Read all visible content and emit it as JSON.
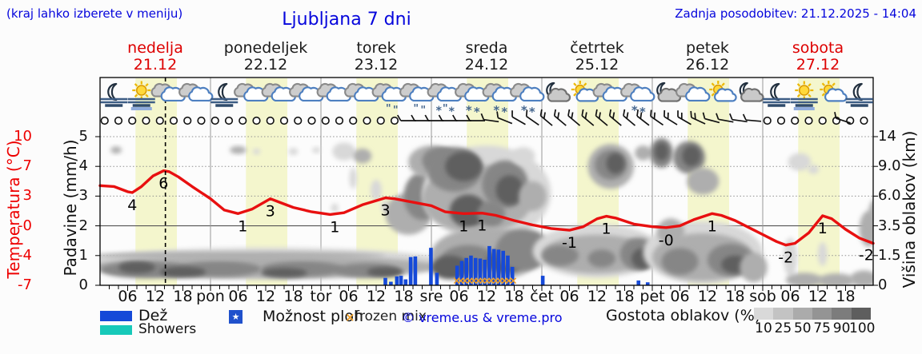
{
  "header": {
    "hint": "(kraj lahko izberete v meniju)",
    "title": "Ljubljana 7 dni",
    "updated": "Zadnja posodobitev: 21.12.2025 - 14:04"
  },
  "days": [
    {
      "name": "nedelja",
      "date": "21.12",
      "highlight": true
    },
    {
      "name": "ponedeljek",
      "date": "22.12",
      "highlight": false
    },
    {
      "name": "torek",
      "date": "23.12",
      "highlight": false
    },
    {
      "name": "sreda",
      "date": "24.12",
      "highlight": false
    },
    {
      "name": "četrtek",
      "date": "25.12",
      "highlight": false
    },
    {
      "name": "petek",
      "date": "26.12",
      "highlight": false
    },
    {
      "name": "sobota",
      "date": "27.12",
      "highlight": true
    }
  ],
  "axes": {
    "temp": {
      "title": "Temperatura (°C)",
      "ticks": [
        "10",
        "7",
        "3",
        "-0",
        "-4",
        "-7"
      ]
    },
    "precip": {
      "title": "Padavine (mm/h)",
      "ticks": [
        "5",
        "4",
        "3",
        "2",
        "1",
        "0"
      ]
    },
    "height": {
      "title": "Višina oblakov (km)",
      "ticks": [
        "14",
        "9.0",
        "6.0",
        "3.5",
        "1.5",
        "0"
      ]
    }
  },
  "legend": {
    "rain": "Dež",
    "showers": "Showers",
    "star": "Možnost ploh",
    "frozen": "frozen mix",
    "copyright": "© vreme.us & vreme.pro",
    "clouds": "Gostota oblakov (%)",
    "cloud_levels": [
      "10",
      "25",
      "50",
      "75",
      "90",
      "100"
    ]
  },
  "colors": {
    "blue_text": "#0505dc",
    "red": "#ee0000",
    "temp_line": "#e81010",
    "rain": "#1549d8",
    "showers": "#17c9b9",
    "star_box": "#2051cc",
    "orange": "#ef9f28",
    "daylight_band": "#f4f6cd",
    "cloud_shades": [
      "#d8d8d8",
      "#aeaeae",
      "#868686",
      "#5e5e5e"
    ],
    "legend_grays": [
      "#d9d9d9",
      "#c3c3c3",
      "#ababab",
      "#949494",
      "#7c7c7c",
      "#5e5e5e"
    ]
  },
  "chart_data": {
    "type": "meteogram",
    "x_unit": "hours from 21.12 00:00, 7 days",
    "x_range": [
      0,
      168
    ],
    "current_time_h": 14.2,
    "daylight": {
      "sunrise_h": 7.7,
      "sunset_h": 16.7
    },
    "precip_axis": {
      "unit": "mm/h",
      "ticks": [
        0,
        1,
        2,
        3,
        4,
        5
      ]
    },
    "temp_axis": {
      "unit": "°C",
      "min": -7,
      "max": 10
    },
    "height_axis": {
      "unit": "km",
      "tick_km": [
        0,
        1.5,
        3.5,
        6.0,
        9.0,
        14
      ]
    },
    "time_labels": [
      [
        6,
        "06"
      ],
      [
        12,
        "12"
      ],
      [
        18,
        "18"
      ],
      [
        24,
        "pon"
      ],
      [
        30,
        "06"
      ],
      [
        36,
        "12"
      ],
      [
        42,
        "18"
      ],
      [
        48,
        "tor"
      ],
      [
        54,
        "06"
      ],
      [
        60,
        "12"
      ],
      [
        66,
        "18"
      ],
      [
        72,
        "sre"
      ],
      [
        78,
        "06"
      ],
      [
        84,
        "12"
      ],
      [
        90,
        "18"
      ],
      [
        96,
        "čet"
      ],
      [
        102,
        "06"
      ],
      [
        108,
        "12"
      ],
      [
        114,
        "18"
      ],
      [
        120,
        "pet"
      ],
      [
        126,
        "06"
      ],
      [
        132,
        "12"
      ],
      [
        138,
        "18"
      ],
      [
        144,
        "sob"
      ],
      [
        150,
        "06"
      ],
      [
        156,
        "12"
      ],
      [
        162,
        "18"
      ]
    ],
    "temperature": [
      [
        0,
        4.4
      ],
      [
        3,
        4.3
      ],
      [
        6,
        3.7
      ],
      [
        7,
        3.6
      ],
      [
        9,
        4.3
      ],
      [
        11.5,
        5.5
      ],
      [
        13.8,
        6.1
      ],
      [
        15,
        6.0
      ],
      [
        17,
        5.4
      ],
      [
        20,
        4.3
      ],
      [
        24,
        2.9
      ],
      [
        27,
        1.6
      ],
      [
        30,
        1.2
      ],
      [
        33,
        1.7
      ],
      [
        37,
        2.9
      ],
      [
        39,
        2.5
      ],
      [
        42,
        1.9
      ],
      [
        46,
        1.4
      ],
      [
        50,
        1.1
      ],
      [
        53,
        1.3
      ],
      [
        57,
        2.2
      ],
      [
        62,
        3.0
      ],
      [
        64,
        2.9
      ],
      [
        68,
        2.5
      ],
      [
        72,
        2.1
      ],
      [
        75,
        1.4
      ],
      [
        79,
        1.2
      ],
      [
        83,
        1.25
      ],
      [
        86,
        1.0
      ],
      [
        90,
        0.4
      ],
      [
        94,
        -0.1
      ],
      [
        98,
        -0.5
      ],
      [
        102,
        -0.7
      ],
      [
        105,
        -0.3
      ],
      [
        108,
        0.6
      ],
      [
        110,
        0.9
      ],
      [
        112,
        0.7
      ],
      [
        116,
        0.0
      ],
      [
        120,
        -0.3
      ],
      [
        123,
        -0.4
      ],
      [
        126,
        -0.2
      ],
      [
        129,
        0.5
      ],
      [
        133,
        1.2
      ],
      [
        135,
        1.0
      ],
      [
        138,
        0.4
      ],
      [
        141,
        -0.4
      ],
      [
        144,
        -1.2
      ],
      [
        147,
        -2.0
      ],
      [
        149,
        -2.4
      ],
      [
        151,
        -2.2
      ],
      [
        154,
        -1.0
      ],
      [
        157,
        0.95
      ],
      [
        159,
        0.6
      ],
      [
        162,
        -0.6
      ],
      [
        165,
        -1.6
      ],
      [
        168,
        -2.2
      ]
    ],
    "temp_point_labels": [
      [
        7,
        3.6,
        "4"
      ],
      [
        13.8,
        6.1,
        "6"
      ],
      [
        31,
        1.2,
        "1"
      ],
      [
        37,
        2.9,
        "3"
      ],
      [
        51,
        1.1,
        "1"
      ],
      [
        62,
        3.0,
        "3"
      ],
      [
        79,
        1.2,
        "1"
      ],
      [
        83,
        1.25,
        "1"
      ],
      [
        102,
        -0.7,
        "-1"
      ],
      [
        110,
        0.9,
        "1"
      ],
      [
        123,
        -0.4,
        "-0"
      ],
      [
        133,
        1.2,
        "1"
      ],
      [
        149,
        -2.4,
        "-2"
      ],
      [
        157,
        0.95,
        "1"
      ],
      [
        166.5,
        -2.1,
        "-2"
      ]
    ],
    "precip_bars": [
      [
        62,
        0.25
      ],
      [
        63.2,
        0.12
      ],
      [
        64.5,
        0.3
      ],
      [
        65.4,
        0.32
      ],
      [
        66.4,
        0.2
      ],
      [
        67.5,
        0.95
      ],
      [
        68.5,
        0.97
      ],
      [
        71.9,
        1.26
      ],
      [
        73.2,
        0.42
      ],
      [
        77.6,
        0.66
      ],
      [
        78.6,
        0.82
      ],
      [
        79.6,
        0.92
      ],
      [
        80.6,
        1.0
      ],
      [
        81.6,
        0.92
      ],
      [
        82.6,
        0.9
      ],
      [
        83.6,
        0.86
      ],
      [
        84.6,
        1.32
      ],
      [
        85.6,
        1.22
      ],
      [
        86.6,
        1.2
      ],
      [
        87.6,
        1.16
      ],
      [
        88.6,
        1.0
      ],
      [
        89.6,
        0.62
      ],
      [
        96.2,
        0.32
      ],
      [
        117,
        0.16
      ],
      [
        119,
        0.1
      ]
    ],
    "frozen_mix_hours": [
      77.5,
      78.4,
      79.3,
      80.3,
      81.2,
      82.2,
      83.1,
      84.1,
      85,
      86,
      86.9,
      87.9,
      88.8,
      89.8
    ],
    "wind": {
      "calm_circle_hours": [
        1,
        4,
        7,
        10,
        13,
        16,
        19,
        22,
        25,
        28,
        31,
        34,
        37,
        40,
        43,
        46,
        49,
        52,
        55,
        58,
        61,
        64,
        145,
        148,
        151,
        154,
        157,
        160,
        163,
        166
      ],
      "barbs": [
        [
          67,
          0,
          1
        ],
        [
          70,
          0,
          1
        ],
        [
          73,
          0,
          1
        ],
        [
          76,
          0,
          1
        ],
        [
          79,
          0,
          1
        ],
        [
          82,
          0,
          1
        ],
        [
          85,
          8,
          1
        ],
        [
          88,
          22,
          1
        ],
        [
          91,
          30,
          1
        ],
        [
          94,
          35,
          1
        ],
        [
          97,
          40,
          2
        ],
        [
          100,
          40,
          2
        ],
        [
          103,
          40,
          2
        ],
        [
          106,
          40,
          2
        ],
        [
          109,
          40,
          2
        ],
        [
          112,
          40,
          2
        ],
        [
          115,
          40,
          2
        ],
        [
          118,
          38,
          2
        ],
        [
          121,
          35,
          2
        ],
        [
          124,
          32,
          2
        ],
        [
          127,
          30,
          2
        ],
        [
          130,
          25,
          2
        ],
        [
          133,
          15,
          1
        ],
        [
          136,
          10,
          1
        ],
        [
          139,
          8,
          1
        ],
        [
          142,
          5,
          1
        ],
        [
          161.5,
          18,
          1
        ]
      ]
    },
    "sky_icons": [
      [
        3,
        "moon-fog"
      ],
      [
        9,
        "sun-fog"
      ],
      [
        15,
        "cloud"
      ],
      [
        21,
        "cloud"
      ],
      [
        27,
        "moon-fog"
      ],
      [
        33,
        "cloud"
      ],
      [
        39,
        "cloud"
      ],
      [
        45,
        "cloud"
      ],
      [
        51,
        "cloud"
      ],
      [
        57,
        "cloud"
      ],
      [
        63,
        "cloud-drizzle"
      ],
      [
        69,
        "cloud-drizzle"
      ],
      [
        75,
        "cloud-sleet"
      ],
      [
        81,
        "cloud-snow"
      ],
      [
        87,
        "cloud-snow"
      ],
      [
        93,
        "cloud-snow"
      ],
      [
        99,
        "moon-cloud"
      ],
      [
        105,
        "sun-cloud"
      ],
      [
        111,
        "cloud"
      ],
      [
        117,
        "cloud-snow"
      ],
      [
        123,
        "moon-cloud"
      ],
      [
        129,
        "cloud"
      ],
      [
        135,
        "sun-cloud"
      ],
      [
        141,
        "moon-cloud"
      ],
      [
        147,
        "moon-fog"
      ],
      [
        153,
        "sun-fog"
      ],
      [
        159,
        "sun-cloud"
      ],
      [
        165,
        "moon-fog"
      ]
    ],
    "clouds": [
      [
        36,
        0.75,
        40,
        0.52,
        0
      ],
      [
        36,
        0.62,
        38,
        0.38,
        1
      ],
      [
        10,
        0.52,
        10,
        0.28,
        2
      ],
      [
        26,
        0.55,
        9,
        0.26,
        2
      ],
      [
        44,
        0.55,
        9,
        0.26,
        2
      ],
      [
        58,
        0.5,
        7,
        0.24,
        2
      ],
      [
        18,
        0.45,
        5,
        0.18,
        3
      ],
      [
        40,
        0.42,
        5,
        0.16,
        3
      ],
      [
        62,
        0.45,
        4,
        0.16,
        3
      ],
      [
        8,
        0.6,
        4,
        0.2,
        3
      ],
      [
        30,
        1.0,
        32,
        0.12,
        1
      ],
      [
        3.5,
        4.55,
        1.2,
        0.12,
        1
      ],
      [
        30,
        4.55,
        1.8,
        0.13,
        1
      ],
      [
        34,
        4.5,
        0.8,
        0.1,
        0
      ],
      [
        42,
        4.5,
        1,
        0.12,
        0
      ],
      [
        47,
        4.55,
        0.9,
        0.1,
        0
      ],
      [
        53,
        4.5,
        2.5,
        0.3,
        0
      ],
      [
        57,
        4.35,
        2,
        0.25,
        1
      ],
      [
        60,
        3.2,
        1.2,
        0.35,
        0
      ],
      [
        62,
        2.65,
        0.9,
        0.2,
        0
      ],
      [
        51,
        2.6,
        0.8,
        0.15,
        0
      ],
      [
        55,
        3.6,
        0.8,
        0.35,
        0
      ],
      [
        67,
        2.4,
        5,
        0.7,
        1
      ],
      [
        70,
        3.0,
        4,
        0.8,
        2
      ],
      [
        72,
        4.15,
        5,
        0.55,
        1
      ],
      [
        74,
        4.2,
        4,
        0.45,
        2
      ],
      [
        84,
        3.1,
        14,
        1.6,
        0
      ],
      [
        82,
        2.9,
        12,
        1.15,
        1
      ],
      [
        77,
        3.9,
        6,
        0.75,
        2
      ],
      [
        79,
        4.0,
        4,
        0.5,
        3
      ],
      [
        88,
        3.4,
        5,
        0.8,
        2
      ],
      [
        89,
        3.2,
        3,
        0.5,
        3
      ],
      [
        80,
        2.5,
        4,
        0.55,
        3
      ],
      [
        85,
        2.4,
        3,
        0.45,
        2
      ],
      [
        92,
        4.35,
        2.5,
        0.3,
        0
      ],
      [
        94,
        3.0,
        3,
        0.5,
        1
      ],
      [
        84,
        1.05,
        12,
        0.9,
        1
      ],
      [
        80,
        0.85,
        6,
        0.5,
        2
      ],
      [
        88,
        0.8,
        4,
        0.4,
        3
      ],
      [
        76,
        0.6,
        4,
        0.4,
        3
      ],
      [
        92,
        1.2,
        6,
        0.7,
        2
      ],
      [
        108,
        1.15,
        14,
        0.9,
        0
      ],
      [
        108,
        1.05,
        12,
        0.65,
        1
      ],
      [
        100,
        1.0,
        4,
        0.35,
        2
      ],
      [
        109,
        0.9,
        3,
        0.3,
        2
      ],
      [
        117,
        1.05,
        4,
        0.55,
        2
      ],
      [
        118,
        0.9,
        2.5,
        0.35,
        3
      ],
      [
        111,
        4.0,
        5,
        0.75,
        1
      ],
      [
        111,
        4.05,
        3.5,
        0.5,
        2
      ],
      [
        112,
        4.1,
        2,
        0.35,
        3
      ],
      [
        118,
        4.45,
        1.8,
        0.25,
        1
      ],
      [
        122,
        4.45,
        2.5,
        0.5,
        2
      ],
      [
        122,
        4.5,
        1.5,
        0.3,
        3
      ],
      [
        128,
        4.3,
        3.5,
        0.55,
        2
      ],
      [
        128.5,
        4.35,
        2,
        0.35,
        3
      ],
      [
        131,
        3.5,
        3.5,
        0.45,
        1
      ],
      [
        131,
        1.1,
        13,
        1.05,
        0
      ],
      [
        131,
        0.95,
        11,
        0.8,
        1
      ],
      [
        126,
        0.8,
        4,
        0.45,
        2
      ],
      [
        137,
        0.85,
        5,
        0.55,
        2
      ],
      [
        138,
        0.7,
        3,
        0.3,
        3
      ],
      [
        124,
        1.8,
        3,
        0.45,
        1
      ],
      [
        142,
        0.6,
        3,
        0.5,
        1
      ],
      [
        150,
        0.95,
        1.5,
        0.65,
        0
      ],
      [
        152,
        4.15,
        2.5,
        0.3,
        0
      ],
      [
        155,
        3.9,
        1.2,
        0.15,
        0
      ],
      [
        157,
        1.05,
        1,
        0.4,
        0
      ],
      [
        153,
        0.18,
        4,
        0.24,
        1
      ],
      [
        160,
        0.16,
        4,
        0.24,
        1
      ],
      [
        166,
        0.22,
        3,
        0.28,
        1
      ],
      [
        167,
        1.9,
        2,
        0.6,
        1
      ],
      [
        168.5,
        2.4,
        1.5,
        0.5,
        1
      ]
    ]
  }
}
